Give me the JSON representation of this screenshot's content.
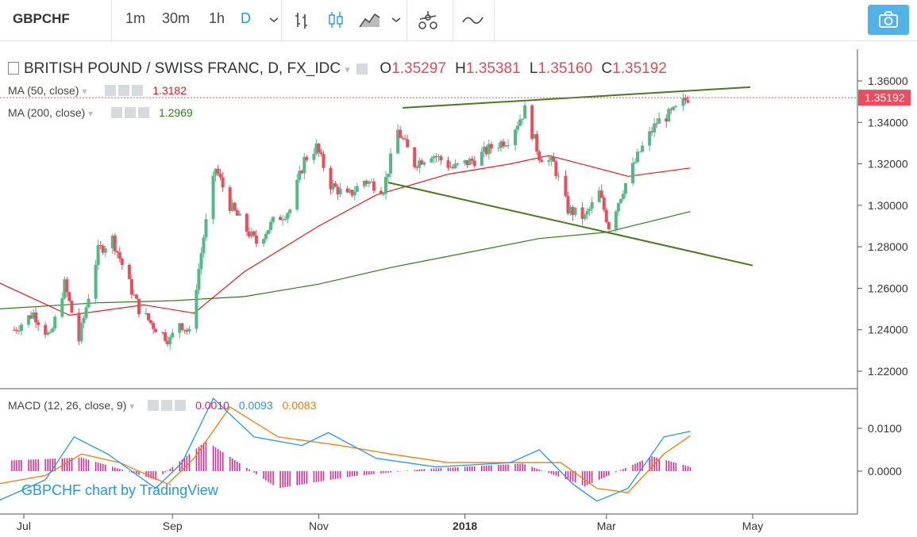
{
  "toolbar": {
    "symbol": "GBPCHF",
    "intervals": [
      "1m",
      "30m",
      "1h",
      "D"
    ],
    "active_interval": "D",
    "icons": [
      "chevron-down-icon",
      "bars-icon",
      "candles-icon",
      "area-icon",
      "chevron-down-icon",
      "indicators-icon",
      "compare-icon",
      "camera-icon"
    ]
  },
  "legend": {
    "title": "BRITISH POUND / SWISS FRANC, D, FX_IDC",
    "o_label": "O",
    "o": "1.35297",
    "h_label": "H",
    "h": "1.35381",
    "l_label": "L",
    "l": "1.35160",
    "c_label": "C",
    "c": "1.35192",
    "ma50_label": "MA (50, close)",
    "ma50_value": "1.3182",
    "ma200_label": "MA (200, close)",
    "ma200_value": "1.2969",
    "macd_label": "MACD (12, 26, close, 9)",
    "macd_hist": "0.0010",
    "macd_line": "0.0093",
    "macd_signal": "0.0083"
  },
  "watermark": "GBPCHF chart by TradingView",
  "colors": {
    "up": "#53b987",
    "down": "#eb4d5c",
    "ma50": "#e41a1c",
    "ma200": "#2e7d1a",
    "macd": "#2196f3",
    "signal": "#f57c00",
    "hist": "#e91e8c",
    "trend": "#4a7a1a"
  },
  "chart_data": [
    {
      "type": "candlestick",
      "title": "BRITISH POUND / SWISS FRANC, D, FX_IDC",
      "x_ticks": [
        "Jul",
        "Sep",
        "Nov",
        "2018",
        "Mar",
        "May"
      ],
      "y_ticks": [
        "1.22000",
        "1.24000",
        "1.26000",
        "1.28000",
        "1.30000",
        "1.32000",
        "1.34000",
        "1.36000"
      ],
      "ylim": [
        1.21,
        1.37
      ],
      "last_price": "1.35192",
      "close_path": [
        [
          "2017-06-27",
          1.24
        ],
        [
          "2017-07-05",
          1.248
        ],
        [
          "2017-07-12",
          1.236
        ],
        [
          "2017-07-18",
          1.262
        ],
        [
          "2017-07-24",
          1.235
        ],
        [
          "2017-08-01",
          1.278
        ],
        [
          "2017-08-07",
          1.284
        ],
        [
          "2017-08-14",
          1.262
        ],
        [
          "2017-08-18",
          1.25
        ],
        [
          "2017-08-24",
          1.242
        ],
        [
          "2017-08-31",
          1.235
        ],
        [
          "2017-09-04",
          1.244
        ],
        [
          "2017-09-08",
          1.238
        ],
        [
          "2017-09-14",
          1.285
        ],
        [
          "2017-09-19",
          1.318
        ],
        [
          "2017-09-25",
          1.3
        ],
        [
          "2017-10-02",
          1.288
        ],
        [
          "2017-10-06",
          1.282
        ],
        [
          "2017-10-13",
          1.292
        ],
        [
          "2017-10-20",
          1.298
        ],
        [
          "2017-10-26",
          1.322
        ],
        [
          "2017-10-31",
          1.328
        ],
        [
          "2017-11-06",
          1.31
        ],
        [
          "2017-11-13",
          1.304
        ],
        [
          "2017-11-20",
          1.312
        ],
        [
          "2017-11-28",
          1.308
        ],
        [
          "2017-12-04",
          1.336
        ],
        [
          "2017-12-11",
          1.32
        ],
        [
          "2017-12-18",
          1.325
        ],
        [
          "2017-12-27",
          1.318
        ],
        [
          "2018-01-05",
          1.322
        ],
        [
          "2018-01-12",
          1.328
        ],
        [
          "2018-01-19",
          1.332
        ],
        [
          "2018-01-26",
          1.346
        ],
        [
          "2018-02-01",
          1.324
        ],
        [
          "2018-02-07",
          1.32
        ],
        [
          "2018-02-13",
          1.298
        ],
        [
          "2018-02-20",
          1.294
        ],
        [
          "2018-02-26",
          1.306
        ],
        [
          "2018-03-02",
          1.29
        ],
        [
          "2018-03-08",
          1.308
        ],
        [
          "2018-03-15",
          1.326
        ],
        [
          "2018-03-22",
          1.34
        ],
        [
          "2018-03-29",
          1.345
        ],
        [
          "2018-04-04",
          1.352
        ]
      ],
      "series": [
        {
          "name": "MA (50, close)",
          "last": 1.3182,
          "points": [
            [
              "2017-06-20",
              1.263
            ],
            [
              "2017-07-20",
              1.247
            ],
            [
              "2017-08-20",
              1.252
            ],
            [
              "2017-09-10",
              1.248
            ],
            [
              "2017-10-01",
              1.268
            ],
            [
              "2017-11-01",
              1.29
            ],
            [
              "2017-11-25",
              1.305
            ],
            [
              "2017-12-25",
              1.315
            ],
            [
              "2018-01-20",
              1.32
            ],
            [
              "2018-02-05",
              1.324
            ],
            [
              "2018-02-25",
              1.318
            ],
            [
              "2018-03-10",
              1.314
            ],
            [
              "2018-04-05",
              1.318
            ]
          ]
        },
        {
          "name": "MA (200, close)",
          "last": 1.2969,
          "points": [
            [
              "2017-06-20",
              1.25
            ],
            [
              "2017-08-01",
              1.253
            ],
            [
              "2017-09-01",
              1.254
            ],
            [
              "2017-10-01",
              1.256
            ],
            [
              "2017-11-01",
              1.262
            ],
            [
              "2017-12-01",
              1.27
            ],
            [
              "2018-01-01",
              1.277
            ],
            [
              "2018-02-01",
              1.284
            ],
            [
              "2018-03-01",
              1.287
            ],
            [
              "2018-04-05",
              1.297
            ]
          ]
        }
      ],
      "trendlines": [
        {
          "start": [
            "2017-12-06",
            1.347
          ],
          "end": [
            "2018-04-30",
            1.357
          ]
        },
        {
          "start": [
            "2017-11-30",
            1.311
          ],
          "end": [
            "2018-05-01",
            1.271
          ]
        }
      ]
    },
    {
      "type": "line",
      "title": "MACD (12, 26, close, 9)",
      "y_ticks": [
        "0.0000",
        "0.0100"
      ],
      "ylim": [
        -0.0085,
        0.0175
      ],
      "series": [
        {
          "name": "MACD",
          "points": [
            [
              "2017-06-20",
              -0.007
            ],
            [
              "2017-07-10",
              -0.002
            ],
            [
              "2017-07-22",
              0.008
            ],
            [
              "2017-08-05",
              0.004
            ],
            [
              "2017-08-25",
              -0.004
            ],
            [
              "2017-09-05",
              0.002
            ],
            [
              "2017-09-18",
              0.017
            ],
            [
              "2017-10-05",
              0.008
            ],
            [
              "2017-10-25",
              0.006
            ],
            [
              "2017-11-05",
              0.009
            ],
            [
              "2017-11-25",
              0.003
            ],
            [
              "2017-12-20",
              0.001
            ],
            [
              "2018-01-20",
              0.002
            ],
            [
              "2018-02-01",
              0.005
            ],
            [
              "2018-02-15",
              -0.003
            ],
            [
              "2018-02-25",
              -0.007
            ],
            [
              "2018-03-10",
              -0.004
            ],
            [
              "2018-03-25",
              0.008
            ],
            [
              "2018-04-05",
              0.0093
            ]
          ]
        },
        {
          "name": "Signal",
          "points": [
            [
              "2017-06-20",
              -0.003
            ],
            [
              "2017-07-10",
              -0.001
            ],
            [
              "2017-07-25",
              0.004
            ],
            [
              "2017-08-10",
              0.002
            ],
            [
              "2017-08-30",
              -0.003
            ],
            [
              "2017-09-10",
              0.003
            ],
            [
              "2017-09-25",
              0.015
            ],
            [
              "2017-10-15",
              0.008
            ],
            [
              "2017-11-10",
              0.006
            ],
            [
              "2017-12-01",
              0.004
            ],
            [
              "2017-12-25",
              0.002
            ],
            [
              "2018-01-25",
              0.002
            ],
            [
              "2018-02-10",
              0.002
            ],
            [
              "2018-02-25",
              -0.004
            ],
            [
              "2018-03-10",
              -0.005
            ],
            [
              "2018-03-25",
              0.004
            ],
            [
              "2018-04-05",
              0.0083
            ]
          ]
        }
      ],
      "histogram_peaks": [
        [
          "2017-06-25",
          0.0025
        ],
        [
          "2017-07-25",
          0.0032
        ],
        [
          "2017-08-25",
          -0.002
        ],
        [
          "2017-09-15",
          0.007
        ],
        [
          "2017-10-15",
          -0.004
        ],
        [
          "2017-11-15",
          -0.0012
        ],
        [
          "2017-12-15",
          0.0005
        ],
        [
          "2018-01-25",
          0.0018
        ],
        [
          "2018-02-20",
          -0.0035
        ],
        [
          "2018-03-20",
          0.0035
        ],
        [
          "2018-04-05",
          0.001
        ]
      ]
    }
  ]
}
